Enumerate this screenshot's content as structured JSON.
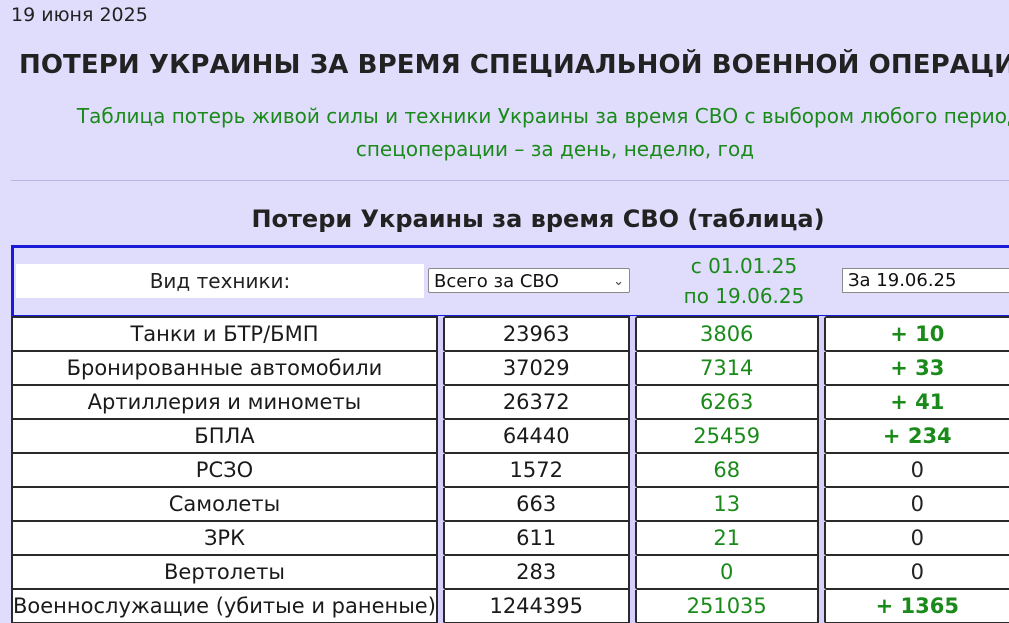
{
  "page": {
    "date": "19 июня 2025",
    "headline": "ПОТЕРИ УКРАИНЫ ЗА ВРЕМЯ СПЕЦИАЛЬНОЙ ВОЕННОЙ ОПЕРАЦИИ (С",
    "subtitle_line1": "Таблица потерь живой силы и техники Украины за время СВО с выбором любого периода",
    "subtitle_line2": "спецоперации – за день, неделю, год",
    "table_title": "Потери Украины за время СВО (таблица)"
  },
  "controls": {
    "type_label": "Вид техники:",
    "range_select_value": "Всего за СВО",
    "period_line1": "с 01.01.25",
    "period_line2": "по 19.06.25",
    "day_input_value": "За 19.06.25"
  },
  "colors": {
    "background": "#e0dcfc",
    "accent_green": "#1a8a1a",
    "control_border": "#1a1ad8"
  },
  "rows": [
    {
      "name": "Танки и БТР/БМП",
      "total": "23963",
      "period": "3806",
      "day": "+ 10"
    },
    {
      "name": "Бронированные автомобили",
      "total": "37029",
      "period": "7314",
      "day": "+ 33"
    },
    {
      "name": "Артиллерия и минометы",
      "total": "26372",
      "period": "6263",
      "day": "+ 41"
    },
    {
      "name": "БПЛА",
      "total": "64440",
      "period": "25459",
      "day": "+ 234"
    },
    {
      "name": "РСЗО",
      "total": "1572",
      "period": "68",
      "day": "0"
    },
    {
      "name": "Самолеты",
      "total": "663",
      "period": "13",
      "day": "0"
    },
    {
      "name": "ЗРК",
      "total": "611",
      "period": "21",
      "day": "0"
    },
    {
      "name": "Вертолеты",
      "total": "283",
      "period": "0",
      "day": "0"
    },
    {
      "name": "Военнослужащие (убитые и раненые)",
      "total": "1244395",
      "period": "251035",
      "day": "+ 1365"
    }
  ]
}
